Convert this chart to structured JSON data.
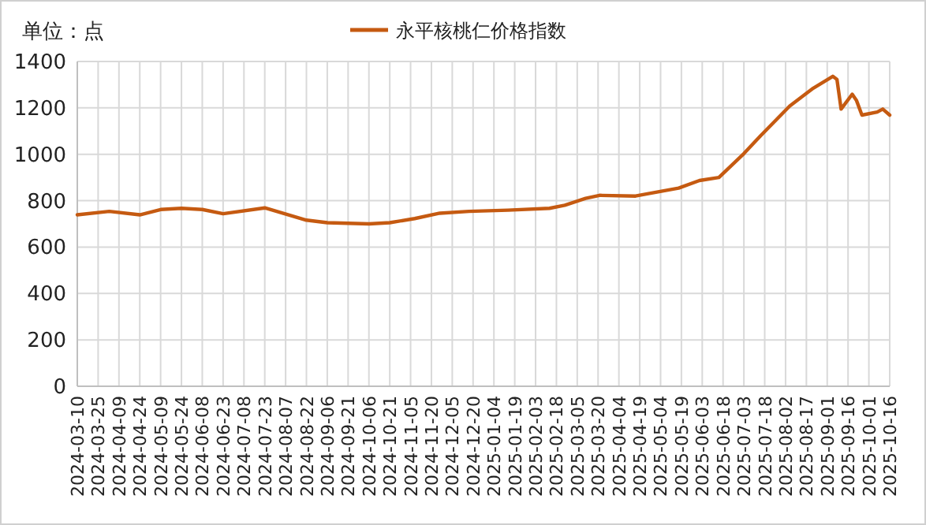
{
  "chart_data": {
    "type": "line",
    "ylabel": "单位：点",
    "series": [
      {
        "name": "永平核桃仁价格指数",
        "color": "#c55a11",
        "x": [
          "2024-03-10",
          "2024-04-02",
          "2024-04-24",
          "2024-05-09",
          "2024-05-24",
          "2024-06-08",
          "2024-06-23",
          "2024-07-23",
          "2024-08-22",
          "2024-09-06",
          "2024-10-06",
          "2024-10-21",
          "2024-11-08",
          "2024-11-26",
          "2024-12-17",
          "2025-01-14",
          "2025-02-13",
          "2025-02-24",
          "2025-03-11",
          "2025-03-21",
          "2025-04-16",
          "2025-04-26",
          "2025-05-17",
          "2025-06-01",
          "2025-06-15",
          "2025-07-03",
          "2025-07-15",
          "2025-08-05",
          "2025-08-22",
          "2025-09-05",
          "2025-09-08",
          "2025-09-11",
          "2025-09-19",
          "2025-09-22",
          "2025-09-26",
          "2025-10-07",
          "2025-10-11",
          "2025-10-16"
        ],
        "values": [
          739,
          754,
          739,
          762,
          767,
          762,
          744,
          769,
          716,
          705,
          700,
          705,
          723,
          746,
          754,
          759,
          767,
          780,
          810,
          823,
          820,
          831,
          854,
          887,
          900,
          1003,
          1080,
          1208,
          1285,
          1336,
          1323,
          1195,
          1259,
          1233,
          1169,
          1182,
          1195,
          1169
        ]
      }
    ],
    "xlim": [
      "2024-03-10",
      "2025-10-16"
    ],
    "xticks": [
      "2024-03-10",
      "2024-03-25",
      "2024-04-09",
      "2024-04-24",
      "2024-05-09",
      "2024-05-24",
      "2024-06-08",
      "2024-06-23",
      "2024-07-08",
      "2024-07-23",
      "2024-08-07",
      "2024-08-22",
      "2024-09-06",
      "2024-09-21",
      "2024-10-06",
      "2024-10-21",
      "2024-11-05",
      "2024-11-20",
      "2024-12-05",
      "2024-12-20",
      "2025-01-04",
      "2025-01-19",
      "2025-02-03",
      "2025-02-18",
      "2025-03-05",
      "2025-03-20",
      "2025-04-04",
      "2025-04-19",
      "2025-05-04",
      "2025-05-19",
      "2025-06-03",
      "2025-06-18",
      "2025-07-03",
      "2025-07-18",
      "2025-08-02",
      "2025-08-17",
      "2025-09-01",
      "2025-09-16",
      "2025-10-01",
      "2025-10-16"
    ],
    "ylim": [
      0,
      1400
    ],
    "yticks": [
      0,
      200,
      400,
      600,
      800,
      1000,
      1200,
      1400
    ],
    "grid": true,
    "legend": "top",
    "marker": "none",
    "line_style": "solid"
  }
}
